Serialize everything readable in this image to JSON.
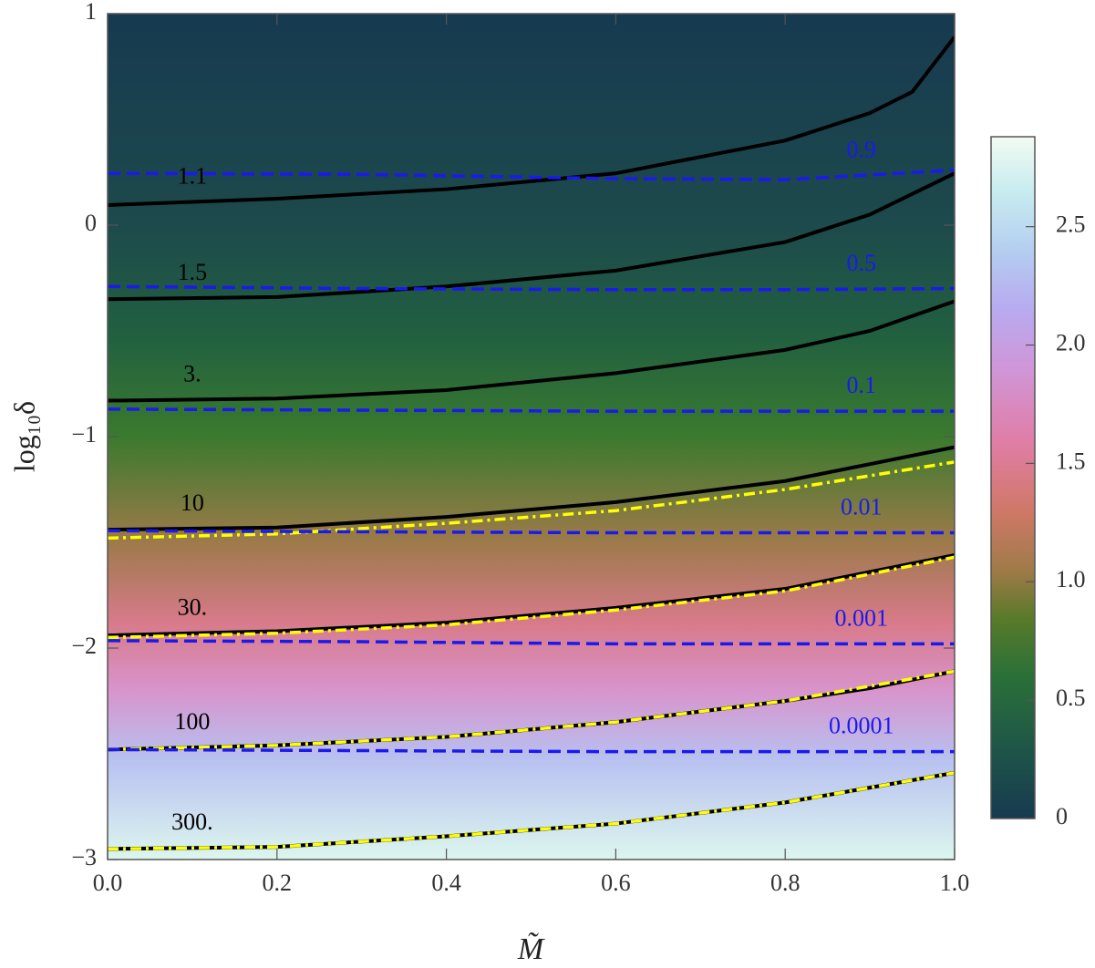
{
  "chart_data": {
    "type": "contour",
    "xlabel": "M̃",
    "ylabel": "log₁₀δ",
    "xlim": [
      0,
      1
    ],
    "ylim": [
      -3,
      1
    ],
    "xticks": [
      {
        "value": 0,
        "label": "0.0"
      },
      {
        "value": 0.2,
        "label": "0.2"
      },
      {
        "value": 0.4,
        "label": "0.4"
      },
      {
        "value": 0.6,
        "label": "0.6"
      },
      {
        "value": 0.8,
        "label": "0.8"
      },
      {
        "value": 1,
        "label": "1.0"
      }
    ],
    "yticks": [
      {
        "value": -3,
        "label": "−3"
      },
      {
        "value": -2,
        "label": "−2"
      },
      {
        "value": -1,
        "label": "−1"
      },
      0,
      1
    ],
    "colorbar": {
      "lim": [
        0,
        2.88
      ],
      "ticks": [
        0,
        0.5,
        {
          "value": 1,
          "label": "1.0"
        },
        1.5,
        {
          "value": 2,
          "label": "2.0"
        },
        2.5
      ],
      "colormap": [
        [
          0,
          "#173a50"
        ],
        [
          0.3,
          "#1f5648"
        ],
        [
          0.6,
          "#2a7038"
        ],
        [
          0.85,
          "#5a7a2a"
        ],
        [
          1.05,
          "#a07a48"
        ],
        [
          1.3,
          "#d07868"
        ],
        [
          1.6,
          "#e07ea8"
        ],
        [
          1.9,
          "#d096d8"
        ],
        [
          2.15,
          "#b8aaf0"
        ],
        [
          2.4,
          "#b4cef0"
        ],
        [
          2.65,
          "#c8ecf0"
        ],
        [
          2.88,
          "#f2fbf2"
        ]
      ]
    },
    "series": [
      {
        "label": "1.1",
        "color": "#000000",
        "style": "solid",
        "x": [
          0,
          0.2,
          0.4,
          0.6,
          0.8,
          0.9,
          0.95,
          1.0
        ],
        "values": [
          0.095,
          0.125,
          0.17,
          0.245,
          0.4,
          0.53,
          0.63,
          0.89
        ]
      },
      {
        "label": "1.5",
        "color": "#000000",
        "style": "solid",
        "x": [
          0,
          0.2,
          0.4,
          0.6,
          0.8,
          0.9,
          1.0
        ],
        "values": [
          -0.35,
          -0.34,
          -0.29,
          -0.215,
          -0.08,
          0.05,
          0.245
        ]
      },
      {
        "label": "3.",
        "color": "#000000",
        "style": "solid",
        "x": [
          0,
          0.2,
          0.4,
          0.6,
          0.8,
          0.9,
          1.0
        ],
        "values": [
          -0.83,
          -0.82,
          -0.78,
          -0.7,
          -0.59,
          -0.5,
          -0.36
        ]
      },
      {
        "label": "10",
        "color": "#000000",
        "style": "solid",
        "x": [
          0,
          0.2,
          0.4,
          0.6,
          0.8,
          0.9,
          1.0
        ],
        "values": [
          -1.44,
          -1.43,
          -1.38,
          -1.31,
          -1.21,
          -1.13,
          -1.05
        ]
      },
      {
        "label": "30.",
        "color": "#000000",
        "style": "solid",
        "x": [
          0,
          0.2,
          0.4,
          0.6,
          0.8,
          0.9,
          1.0
        ],
        "values": [
          -1.94,
          -1.92,
          -1.88,
          -1.81,
          -1.72,
          -1.64,
          -1.56
        ]
      },
      {
        "label": "100",
        "color": "#000000",
        "style": "solid",
        "x": [
          0,
          0.2,
          0.4,
          0.6,
          0.8,
          0.9,
          1.0
        ],
        "values": [
          -2.48,
          -2.46,
          -2.42,
          -2.35,
          -2.25,
          -2.19,
          -2.11
        ]
      },
      {
        "label": "300.",
        "color": "#000000",
        "style": "solid",
        "x": [
          0,
          0.2,
          0.4,
          0.6,
          0.8,
          0.9,
          1.0
        ],
        "values": [
          -2.95,
          -2.94,
          -2.89,
          -2.83,
          -2.73,
          -2.66,
          -2.59
        ]
      },
      {
        "color": "#ffff00",
        "style": "dashdot",
        "x": [
          0,
          0.2,
          0.4,
          0.6,
          0.8,
          1.0
        ],
        "values": [
          -1.48,
          -1.46,
          -1.41,
          -1.35,
          -1.25,
          -1.12
        ]
      },
      {
        "color": "#ffff00",
        "style": "dashdot",
        "x": [
          0,
          0.2,
          0.4,
          0.6,
          0.8,
          1.0
        ],
        "values": [
          -1.95,
          -1.93,
          -1.89,
          -1.82,
          -1.73,
          -1.57
        ]
      },
      {
        "color": "#ffff00",
        "style": "dashdot",
        "x": [
          0,
          0.2,
          0.4,
          0.6,
          0.8,
          1.0
        ],
        "values": [
          -2.48,
          -2.46,
          -2.42,
          -2.35,
          -2.25,
          -2.11
        ]
      },
      {
        "color": "#ffff00",
        "style": "dashdot",
        "x": [
          0,
          0.2,
          0.4,
          0.6,
          0.8,
          1.0
        ],
        "values": [
          -2.95,
          -2.94,
          -2.89,
          -2.83,
          -2.73,
          -2.59
        ]
      },
      {
        "label": "0.9",
        "color": "#1a1aee",
        "style": "dashed",
        "x": [
          0,
          0.3,
          0.6,
          0.8,
          1.0
        ],
        "values": [
          0.245,
          0.24,
          0.22,
          0.215,
          0.26
        ]
      },
      {
        "label": "0.5",
        "color": "#1a1aee",
        "style": "dashed",
        "x": [
          0,
          0.3,
          0.6,
          0.8,
          1.0
        ],
        "values": [
          -0.29,
          -0.3,
          -0.305,
          -0.305,
          -0.3
        ]
      },
      {
        "label": "0.1",
        "color": "#1a1aee",
        "style": "dashed",
        "x": [
          0,
          0.3,
          0.6,
          0.8,
          1.0
        ],
        "values": [
          -0.87,
          -0.875,
          -0.88,
          -0.88,
          -0.88
        ]
      },
      {
        "label": "0.01",
        "color": "#1a1aee",
        "style": "dashed",
        "x": [
          0,
          0.3,
          0.6,
          0.8,
          1.0
        ],
        "values": [
          -1.445,
          -1.45,
          -1.455,
          -1.455,
          -1.455
        ]
      },
      {
        "label": "0.001",
        "color": "#1a1aee",
        "style": "dashed",
        "x": [
          0,
          0.3,
          0.6,
          0.8,
          1.0
        ],
        "values": [
          -1.965,
          -1.97,
          -1.98,
          -1.98,
          -1.98
        ]
      },
      {
        "label": "0.0001",
        "color": "#1a1aee",
        "style": "dashed",
        "x": [
          0,
          0.3,
          0.6,
          0.8,
          1.0
        ],
        "values": [
          -2.48,
          -2.485,
          -2.49,
          -2.49,
          -2.49
        ]
      }
    ]
  }
}
